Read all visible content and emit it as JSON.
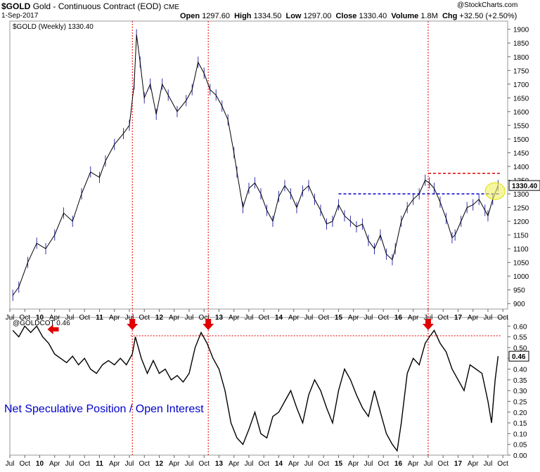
{
  "header": {
    "symbol": "$GOLD",
    "name": "Gold - Continuous Contract (EOD)",
    "exchange": "CME",
    "date": "1-Sep-2017",
    "open_label": "Open",
    "open": "1297.60",
    "high_label": "High",
    "high": "1334.50",
    "low_label": "Low",
    "low": "1297.00",
    "close_label": "Close",
    "close": "1330.40",
    "volume_label": "Volume",
    "volume": "1.8M",
    "chg_label": "Chg",
    "chg": "+32.50 (+2.50%)",
    "copyright": "@StockCharts.com"
  },
  "chart_data": [
    {
      "type": "line",
      "title": "$GOLD (Weekly) 1330.40",
      "last_value": "1330.40",
      "ylim": [
        880,
        1930
      ],
      "y_ticks": [
        900,
        950,
        1000,
        1050,
        1100,
        1150,
        1200,
        1250,
        1300,
        1350,
        1400,
        1450,
        1500,
        1550,
        1600,
        1650,
        1700,
        1750,
        1800,
        1850,
        1900
      ],
      "x_ticks": [
        "Jul",
        "Oct",
        "10",
        "Apr",
        "Jul",
        "Oct",
        "11",
        "Apr",
        "Jul",
        "Oct",
        "12",
        "Apr",
        "Jul",
        "Oct",
        "13",
        "Apr",
        "Jul",
        "Oct",
        "14",
        "Apr",
        "Jul",
        "Oct",
        "15",
        "Apr",
        "Jul",
        "Oct",
        "16",
        "Apr",
        "Jul",
        "Oct",
        "17",
        "Apr",
        "Jul",
        "Oct"
      ],
      "x": [
        2009.55,
        2009.65,
        2009.8,
        2009.95,
        2010.1,
        2010.25,
        2010.4,
        2010.55,
        2010.7,
        2010.85,
        2011.0,
        2011.1,
        2011.25,
        2011.4,
        2011.5,
        2011.58,
        2011.62,
        2011.68,
        2011.75,
        2011.85,
        2011.95,
        2012.05,
        2012.15,
        2012.3,
        2012.45,
        2012.55,
        2012.65,
        2012.75,
        2012.85,
        2012.95,
        2013.05,
        2013.15,
        2013.25,
        2013.3,
        2013.4,
        2013.5,
        2013.6,
        2013.7,
        2013.8,
        2013.9,
        2014.0,
        2014.1,
        2014.2,
        2014.3,
        2014.4,
        2014.5,
        2014.6,
        2014.7,
        2014.8,
        2014.9,
        2015.0,
        2015.1,
        2015.2,
        2015.3,
        2015.4,
        2015.5,
        2015.6,
        2015.7,
        2015.8,
        2015.9,
        2015.95,
        2016.05,
        2016.15,
        2016.25,
        2016.35,
        2016.45,
        2016.52,
        2016.6,
        2016.7,
        2016.8,
        2016.9,
        2016.95,
        2017.05,
        2017.15,
        2017.25,
        2017.35,
        2017.45,
        2017.5,
        2017.58,
        2017.67
      ],
      "values": [
        930,
        960,
        1050,
        1120,
        1100,
        1150,
        1230,
        1200,
        1300,
        1380,
        1360,
        1420,
        1480,
        1520,
        1550,
        1700,
        1880,
        1780,
        1650,
        1700,
        1590,
        1700,
        1660,
        1600,
        1640,
        1680,
        1780,
        1740,
        1680,
        1660,
        1620,
        1570,
        1450,
        1380,
        1250,
        1320,
        1340,
        1300,
        1240,
        1200,
        1290,
        1330,
        1300,
        1250,
        1310,
        1330,
        1280,
        1240,
        1190,
        1200,
        1260,
        1220,
        1200,
        1180,
        1190,
        1130,
        1100,
        1150,
        1080,
        1060,
        1100,
        1200,
        1250,
        1280,
        1300,
        1350,
        1340,
        1320,
        1270,
        1210,
        1140,
        1150,
        1200,
        1250,
        1260,
        1280,
        1240,
        1220,
        1280,
        1330
      ],
      "hline_resistance": 1375,
      "hline_support": 1300,
      "resistance_range": [
        2016.5,
        2017.72
      ],
      "support_range": [
        2015.0,
        2017.72
      ],
      "highlight": {
        "x": 2017.62,
        "y": 1310
      },
      "line_color": "#000000",
      "bar_color": "#3333aa",
      "resistance_color": "#e00000",
      "support_color": "#0000cc"
    },
    {
      "type": "line",
      "title": "@GOLDCOT 0.46",
      "annotation": "Net Speculative Position / Open Interest",
      "last_value": "0.46",
      "ylim": [
        0,
        0.64
      ],
      "y_ticks": [
        0.0,
        0.05,
        0.1,
        0.15,
        0.2,
        0.25,
        0.3,
        0.35,
        0.4,
        0.45,
        0.5,
        0.55,
        0.6
      ],
      "x_ticks": [
        "Jul",
        "Oct",
        "10",
        "Apr",
        "Jul",
        "Oct",
        "11",
        "Apr",
        "Jul",
        "Oct",
        "12",
        "Apr",
        "Jul",
        "Oct",
        "13",
        "Apr",
        "Jul",
        "Oct",
        "14",
        "Apr",
        "Jul",
        "Oct",
        "15",
        "Apr",
        "Jul",
        "Oct",
        "16",
        "Apr",
        "Jul",
        "Oct",
        "17",
        "Apr",
        "Jul",
        "Oct"
      ],
      "x": [
        2009.55,
        2009.65,
        2009.75,
        2009.85,
        2009.95,
        2010.05,
        2010.15,
        2010.25,
        2010.35,
        2010.45,
        2010.55,
        2010.65,
        2010.75,
        2010.85,
        2010.95,
        2011.05,
        2011.15,
        2011.25,
        2011.35,
        2011.45,
        2011.55,
        2011.6,
        2011.7,
        2011.8,
        2011.9,
        2012.0,
        2012.1,
        2012.2,
        2012.3,
        2012.4,
        2012.5,
        2012.6,
        2012.7,
        2012.8,
        2012.9,
        2013.0,
        2013.1,
        2013.2,
        2013.3,
        2013.4,
        2013.5,
        2013.6,
        2013.7,
        2013.8,
        2013.9,
        2014.0,
        2014.1,
        2014.2,
        2014.3,
        2014.4,
        2014.5,
        2014.6,
        2014.7,
        2014.8,
        2014.9,
        2015.0,
        2015.1,
        2015.2,
        2015.3,
        2015.4,
        2015.5,
        2015.6,
        2015.7,
        2015.8,
        2015.9,
        2015.98,
        2016.05,
        2016.15,
        2016.25,
        2016.35,
        2016.45,
        2016.52,
        2016.6,
        2016.7,
        2016.8,
        2016.9,
        2017.0,
        2017.1,
        2017.2,
        2017.3,
        2017.4,
        2017.5,
        2017.56,
        2017.62,
        2017.67
      ],
      "values": [
        0.58,
        0.55,
        0.6,
        0.57,
        0.6,
        0.55,
        0.52,
        0.47,
        0.45,
        0.43,
        0.46,
        0.42,
        0.45,
        0.4,
        0.38,
        0.42,
        0.44,
        0.42,
        0.45,
        0.42,
        0.47,
        0.55,
        0.45,
        0.38,
        0.44,
        0.38,
        0.4,
        0.35,
        0.37,
        0.34,
        0.38,
        0.5,
        0.57,
        0.52,
        0.45,
        0.4,
        0.3,
        0.15,
        0.08,
        0.05,
        0.12,
        0.2,
        0.1,
        0.08,
        0.18,
        0.2,
        0.25,
        0.3,
        0.22,
        0.15,
        0.28,
        0.35,
        0.3,
        0.22,
        0.15,
        0.3,
        0.4,
        0.35,
        0.28,
        0.22,
        0.18,
        0.3,
        0.2,
        0.1,
        0.05,
        0.02,
        0.15,
        0.38,
        0.45,
        0.42,
        0.52,
        0.55,
        0.58,
        0.52,
        0.48,
        0.4,
        0.35,
        0.3,
        0.42,
        0.4,
        0.38,
        0.25,
        0.15,
        0.35,
        0.46
      ],
      "hline_level": 0.555,
      "hline_range": [
        2011.52,
        2017.72
      ],
      "arrows_down": [
        2011.55,
        2012.82,
        2016.5
      ],
      "arrow_left": 2010.13,
      "line_color": "#000000",
      "annotation_color": "#0000cc",
      "arrow_color": "#e00000"
    }
  ],
  "vlines": [
    2011.55,
    2012.82,
    2016.5
  ]
}
